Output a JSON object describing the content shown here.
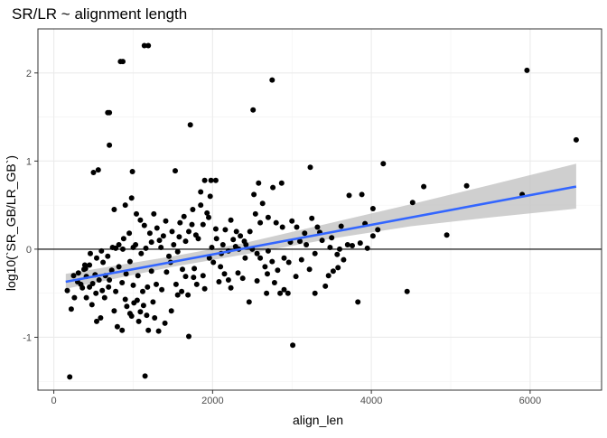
{
  "chart_data": {
    "type": "scatter",
    "title": "SR/LR ~ alignment length",
    "xlabel": "align_len",
    "ylabel": "log10(`SR_GB/LR_GB`)",
    "xlim": [
      -200,
      6900
    ],
    "ylim": [
      -1.6,
      2.5
    ],
    "x_ticks": [
      0,
      2000,
      4000,
      6000
    ],
    "x_tick_labels": [
      "0",
      "2000",
      "4000",
      "6000"
    ],
    "y_ticks": [
      -1,
      0,
      1,
      2
    ],
    "y_tick_labels": [
      "-1",
      "0",
      "1",
      "2"
    ],
    "grid": true,
    "theme": "bw",
    "reference_line_y": 0,
    "point_color": "#000000",
    "points": [
      [
        200,
        -1.45
      ],
      [
        1150,
        -1.44
      ],
      [
        3010,
        -1.09
      ],
      [
        1700,
        -0.99
      ],
      [
        4450,
        -0.48
      ],
      [
        5900,
        0.62
      ],
      [
        6580,
        1.24
      ],
      [
        5960,
        2.03
      ],
      [
        2750,
        1.92
      ],
      [
        2510,
        1.58
      ],
      [
        1140,
        2.31
      ],
      [
        1190,
        2.31
      ],
      [
        840,
        2.13
      ],
      [
        870,
        2.13
      ],
      [
        680,
        1.55
      ],
      [
        700,
        1.55
      ],
      [
        700,
        1.18
      ],
      [
        1720,
        1.41
      ],
      [
        4150,
        0.97
      ],
      [
        3230,
        0.93
      ],
      [
        1530,
        0.89
      ],
      [
        990,
        0.88
      ],
      [
        500,
        0.87
      ],
      [
        560,
        0.9
      ],
      [
        760,
        0.45
      ],
      [
        900,
        0.5
      ],
      [
        980,
        0.58
      ],
      [
        1900,
        0.78
      ],
      [
        1980,
        0.78
      ],
      [
        2580,
        0.75
      ],
      [
        2520,
        0.62
      ],
      [
        2760,
        0.7
      ],
      [
        2870,
        0.75
      ],
      [
        3060,
        0.25
      ],
      [
        3350,
        0.19
      ],
      [
        3620,
        0.26
      ],
      [
        3720,
        0.61
      ],
      [
        3880,
        0.62
      ],
      [
        4020,
        0.46
      ],
      [
        4520,
        0.53
      ],
      [
        4660,
        0.71
      ],
      [
        4950,
        0.16
      ],
      [
        5200,
        0.72
      ],
      [
        3920,
        0.29
      ],
      [
        4020,
        0.15
      ],
      [
        3860,
        0.07
      ],
      [
        3580,
        -0.21
      ],
      [
        3420,
        -0.42
      ],
      [
        3220,
        -0.23
      ],
      [
        2950,
        -0.5
      ],
      [
        2850,
        -0.5
      ],
      [
        2780,
        -0.38
      ],
      [
        2660,
        -0.2
      ],
      [
        2600,
        -0.1
      ],
      [
        2420,
        0.05
      ],
      [
        2320,
        -0.27
      ],
      [
        2200,
        -0.35
      ],
      [
        2100,
        -0.2
      ],
      [
        2010,
        -0.15
      ],
      [
        1960,
        -0.1
      ],
      [
        1900,
        -0.45
      ],
      [
        1800,
        -0.4
      ],
      [
        1760,
        -0.32
      ],
      [
        1660,
        -0.31
      ],
      [
        1610,
        -0.48
      ],
      [
        1560,
        -0.52
      ],
      [
        1480,
        -0.7
      ],
      [
        1400,
        -0.84
      ],
      [
        1320,
        -0.93
      ],
      [
        1250,
        -0.6
      ],
      [
        1170,
        -0.75
      ],
      [
        1090,
        -0.71
      ],
      [
        1050,
        -0.58
      ],
      [
        980,
        -0.76
      ],
      [
        920,
        -0.65
      ],
      [
        860,
        -0.92
      ],
      [
        800,
        -0.88
      ],
      [
        760,
        -0.7
      ],
      [
        700,
        -0.35
      ],
      [
        640,
        -0.55
      ],
      [
        590,
        -0.78
      ],
      [
        540,
        -0.82
      ],
      [
        480,
        -0.63
      ],
      [
        410,
        -0.55
      ],
      [
        360,
        -0.44
      ],
      [
        300,
        -0.37
      ],
      [
        250,
        -0.3
      ],
      [
        220,
        -0.68
      ],
      [
        170,
        -0.47
      ],
      [
        260,
        -0.55
      ],
      [
        400,
        -0.22
      ],
      [
        450,
        -0.18
      ],
      [
        520,
        -0.29
      ],
      [
        620,
        -0.15
      ],
      [
        680,
        -0.08
      ],
      [
        740,
        0.02
      ],
      [
        820,
        0.05
      ],
      [
        880,
        0.12
      ],
      [
        950,
        0.18
      ],
      [
        1030,
        0.05
      ],
      [
        1100,
        -0.05
      ],
      [
        1160,
        0.01
      ],
      [
        1230,
        0.08
      ],
      [
        1300,
        0.24
      ],
      [
        1380,
        0.15
      ],
      [
        1450,
        -0.08
      ],
      [
        1510,
        0.05
      ],
      [
        1590,
        0.3
      ],
      [
        1640,
        0.37
      ],
      [
        1700,
        0.2
      ],
      [
        1750,
        0.45
      ],
      [
        1820,
        0.12
      ],
      [
        1880,
        0.28
      ],
      [
        1930,
        0.41
      ],
      [
        1990,
        0.02
      ],
      [
        2050,
        0.12
      ],
      [
        2110,
        -0.05
      ],
      [
        2160,
        0.22
      ],
      [
        2230,
        0.33
      ],
      [
        2290,
        0.03
      ],
      [
        2350,
        0.15
      ],
      [
        2410,
        -0.1
      ],
      [
        2470,
        0.2
      ],
      [
        2540,
        0.4
      ],
      [
        2630,
        0.52
      ],
      [
        2700,
        0.36
      ],
      [
        2800,
        0.3
      ],
      [
        2900,
        -0.1
      ],
      [
        2980,
        0.08
      ],
      [
        3100,
        0.09
      ],
      [
        3180,
        0.05
      ],
      [
        3290,
        -0.05
      ],
      [
        3380,
        0.1
      ],
      [
        3480,
        0.02
      ],
      [
        3570,
        -0.06
      ],
      [
        3650,
        -0.12
      ],
      [
        3760,
        0.04
      ],
      [
        3830,
        -0.6
      ],
      [
        3460,
        -0.3
      ],
      [
        3290,
        -0.5
      ],
      [
        3160,
        0.18
      ],
      [
        3520,
        -0.25
      ],
      [
        2900,
        -0.46
      ],
      [
        2460,
        -0.6
      ],
      [
        2380,
        -0.33
      ],
      [
        2230,
        -0.44
      ],
      [
        2150,
        -0.28
      ],
      [
        2080,
        -0.37
      ],
      [
        1880,
        -0.3
      ],
      [
        1770,
        -0.22
      ],
      [
        1690,
        -0.52
      ],
      [
        1620,
        -0.23
      ],
      [
        1540,
        -0.4
      ],
      [
        1470,
        -0.15
      ],
      [
        1420,
        -0.26
      ],
      [
        1360,
        -0.46
      ],
      [
        1290,
        -0.4
      ],
      [
        1230,
        -0.25
      ],
      [
        1180,
        -0.43
      ],
      [
        1120,
        -0.48
      ],
      [
        1060,
        -0.3
      ],
      [
        1000,
        -0.41
      ],
      [
        960,
        -0.14
      ],
      [
        910,
        -0.28
      ],
      [
        860,
        -0.38
      ],
      [
        820,
        -0.2
      ],
      [
        780,
        -0.48
      ],
      [
        730,
        -0.24
      ],
      [
        690,
        -0.43
      ],
      [
        650,
        -0.3
      ],
      [
        610,
        -0.47
      ],
      [
        570,
        -0.35
      ],
      [
        530,
        -0.5
      ],
      [
        490,
        -0.39
      ],
      [
        450,
        -0.43
      ],
      [
        410,
        -0.31
      ],
      [
        380,
        -0.23
      ],
      [
        340,
        -0.4
      ],
      [
        310,
        -0.27
      ],
      [
        1010,
        -0.61
      ],
      [
        1070,
        -0.82
      ],
      [
        1130,
        -0.64
      ],
      [
        1190,
        -0.92
      ],
      [
        1270,
        -0.78
      ],
      [
        960,
        -0.73
      ],
      [
        900,
        -0.57
      ],
      [
        1040,
        0.4
      ],
      [
        1090,
        0.33
      ],
      [
        1140,
        0.27
      ],
      [
        1210,
        0.18
      ],
      [
        1260,
        0.4
      ],
      [
        1330,
        0.1
      ],
      [
        1410,
        0.32
      ],
      [
        1490,
        0.2
      ],
      [
        1580,
        0.14
      ],
      [
        1660,
        0.09
      ],
      [
        1740,
        0.28
      ],
      [
        1850,
        0.5
      ],
      [
        1950,
        0.36
      ],
      [
        2040,
        0.23
      ],
      [
        2130,
        0.05
      ],
      [
        2200,
        -0.02
      ],
      [
        2260,
        0.11
      ],
      [
        2330,
        0.0
      ],
      [
        2400,
        0.09
      ],
      [
        2560,
        -0.05
      ],
      [
        2690,
        -0.28
      ],
      [
        2750,
        -0.14
      ],
      [
        2820,
        -0.24
      ],
      [
        2960,
        -0.15
      ],
      [
        3050,
        -0.31
      ],
      [
        3120,
        -0.12
      ],
      [
        3250,
        0.35
      ],
      [
        3320,
        0.25
      ],
      [
        3600,
        0.0
      ],
      [
        3700,
        0.05
      ],
      [
        3950,
        0.01
      ],
      [
        4080,
        0.22
      ],
      [
        3000,
        0.32
      ],
      [
        2880,
        0.25
      ],
      [
        2600,
        0.3
      ],
      [
        2500,
        0.0
      ],
      [
        2700,
        -0.02
      ],
      [
        2300,
        0.2
      ],
      [
        1970,
        0.6
      ],
      [
        1850,
        0.65
      ],
      [
        1790,
        0.16
      ],
      [
        1560,
        -0.03
      ],
      [
        1350,
        0.02
      ],
      [
        1000,
        0.02
      ],
      [
        870,
        0.0
      ],
      [
        780,
        0.01
      ],
      [
        600,
        -0.02
      ],
      [
        540,
        -0.1
      ],
      [
        460,
        -0.05
      ],
      [
        390,
        -0.18
      ],
      [
        2040,
        0.78
      ],
      [
        2560,
        -0.36
      ],
      [
        2680,
        -0.5
      ],
      [
        3500,
        0.13
      ]
    ],
    "regression": {
      "x": [
        150,
        6580
      ],
      "y": [
        -0.37,
        0.71
      ],
      "color": "#3366ff",
      "ci_band": {
        "x": [
          150,
          1500,
          2400,
          3500,
          4500,
          5500,
          6580
        ],
        "upper": [
          -0.28,
          -0.08,
          0.07,
          0.3,
          0.51,
          0.73,
          0.97
        ],
        "lower": [
          -0.45,
          -0.2,
          -0.06,
          0.12,
          0.26,
          0.36,
          0.46
        ],
        "color": "#bfbfbf"
      }
    }
  }
}
